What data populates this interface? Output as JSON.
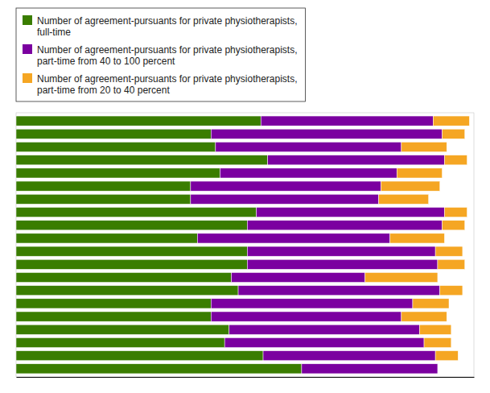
{
  "chart_data": {
    "type": "bar",
    "orientation": "horizontal",
    "stacked": true,
    "categories": [
      null,
      null,
      null,
      null,
      null,
      null,
      null,
      null,
      null,
      null,
      null,
      null,
      null,
      null,
      null,
      null,
      null,
      null,
      null,
      null
    ],
    "series": [
      {
        "name": "Number of agreement-pursuants for private physiotherapists,\nfull-time",
        "color": "#3a7d00",
        "values": [
          540,
          430,
          440,
          555,
          450,
          385,
          385,
          530,
          510,
          400,
          510,
          510,
          475,
          490,
          430,
          430,
          470,
          460,
          545,
          630
        ]
      },
      {
        "name": "Number of agreement-pursuants for private physiotherapists,\npart-time from 40 to 100 percent",
        "color": "#7b00a0",
        "values": [
          380,
          510,
          410,
          390,
          390,
          420,
          415,
          415,
          430,
          425,
          415,
          420,
          295,
          445,
          445,
          420,
          420,
          440,
          380,
          300
        ]
      },
      {
        "name": "Number of agreement-pursuants for private physiotherapists,\npart-time from 20 to 40 percent",
        "color": "#f5a623",
        "values": [
          80,
          50,
          100,
          50,
          100,
          130,
          110,
          50,
          50,
          120,
          60,
          60,
          160,
          50,
          80,
          100,
          70,
          60,
          50,
          0
        ]
      }
    ],
    "xlim": [
      0,
      1010
    ],
    "xticks": [],
    "grid": false,
    "tick_labels": false,
    "legend": "top"
  }
}
